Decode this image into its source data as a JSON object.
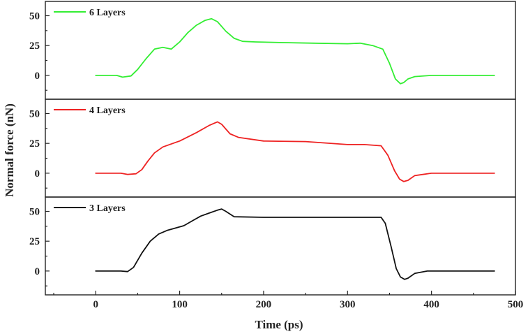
{
  "chart_data": {
    "type": "line",
    "xlabel": "Time (ps)",
    "ylabel": "Normal force (nN)",
    "xlim": [
      -60,
      500
    ],
    "x_ticks": [
      0,
      100,
      200,
      300,
      400,
      500
    ],
    "x_tick_labels": [
      "0",
      "100",
      "200",
      "300",
      "400",
      "500"
    ],
    "panels": [
      {
        "legend": "6 Layers",
        "color": "#33ee33",
        "ylim": [
          -20,
          62
        ],
        "y_ticks": [
          0,
          25,
          50
        ],
        "y_tick_labels": [
          "0",
          "25",
          "50"
        ],
        "x": [
          0,
          25,
          32,
          42,
          50,
          60,
          70,
          80,
          90,
          100,
          110,
          120,
          130,
          138,
          145,
          155,
          165,
          175,
          190,
          220,
          260,
          300,
          315,
          330,
          342,
          350,
          357,
          363,
          367,
          372,
          380,
          400,
          475
        ],
        "y": [
          0,
          0,
          -1.5,
          -0.5,
          5,
          14,
          22,
          23.5,
          22,
          28,
          36,
          42,
          46,
          47.5,
          45,
          37,
          31,
          28.5,
          28,
          27.5,
          27,
          26.5,
          27,
          25,
          22,
          10,
          -3,
          -7,
          -6,
          -3,
          -1,
          0,
          0
        ]
      },
      {
        "legend": "4 Layers",
        "color": "#ee2222",
        "ylim": [
          -20,
          62
        ],
        "y_ticks": [
          0,
          25,
          50
        ],
        "y_tick_labels": [
          "0",
          "25",
          "50"
        ],
        "x": [
          0,
          30,
          38,
          48,
          55,
          62,
          70,
          80,
          100,
          120,
          135,
          145,
          150,
          160,
          170,
          200,
          250,
          300,
          320,
          340,
          348,
          356,
          362,
          367,
          372,
          380,
          400,
          475
        ],
        "y": [
          0,
          0,
          -1,
          -0.5,
          3,
          10,
          17,
          22,
          27,
          34,
          40,
          43,
          41,
          33,
          30,
          27,
          26.5,
          24,
          24,
          23,
          15,
          2,
          -5,
          -7,
          -6,
          -2,
          0,
          0
        ]
      },
      {
        "legend": "3 Layers",
        "color": "#111111",
        "ylim": [
          -20,
          62
        ],
        "y_ticks": [
          0,
          25,
          50
        ],
        "y_tick_labels": [
          "0",
          "25",
          "50"
        ],
        "x": [
          0,
          30,
          38,
          45,
          55,
          65,
          75,
          85,
          95,
          105,
          115,
          125,
          135,
          145,
          150,
          155,
          165,
          200,
          260,
          320,
          340,
          345,
          352,
          358,
          363,
          368,
          372,
          380,
          395,
          475
        ],
        "y": [
          0,
          0,
          -0.5,
          3,
          15,
          25,
          31,
          34,
          36,
          38,
          42,
          46,
          48.5,
          51,
          52,
          50,
          45.5,
          45,
          45,
          45,
          45,
          40,
          20,
          2,
          -5,
          -7,
          -6,
          -2,
          0,
          0
        ]
      }
    ]
  }
}
